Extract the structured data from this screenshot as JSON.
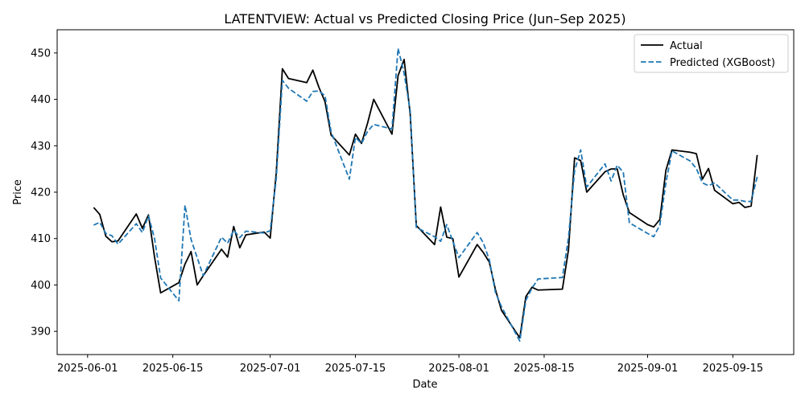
{
  "chart_data": {
    "type": "line",
    "title": "LATENTVIEW: Actual vs Predicted Closing Price (Jun–Sep 2025)",
    "xlabel": "Date",
    "ylabel": "Price",
    "xlim": [
      "2025-05-27",
      "2025-09-25"
    ],
    "ylim": [
      385,
      455
    ],
    "grid": false,
    "legend_position": "top-right",
    "x_ticks": [
      "2025-06-01",
      "2025-06-15",
      "2025-07-01",
      "2025-07-15",
      "2025-08-01",
      "2025-08-15",
      "2025-09-01",
      "2025-09-15"
    ],
    "y_ticks": [
      390,
      400,
      410,
      420,
      430,
      440,
      450
    ],
    "series": [
      {
        "name": "Actual",
        "color": "#000000",
        "dash": "solid",
        "points": [
          [
            "2025-06-02",
            416.7
          ],
          [
            "2025-06-03",
            415.2
          ],
          [
            "2025-06-04",
            410.5
          ],
          [
            "2025-06-05",
            409.3
          ],
          [
            "2025-06-06",
            409.5
          ],
          [
            "2025-06-09",
            415.3
          ],
          [
            "2025-06-10",
            412.2
          ],
          [
            "2025-06-11",
            415.1
          ],
          [
            "2025-06-12",
            406.0
          ],
          [
            "2025-06-13",
            398.3
          ],
          [
            "2025-06-16",
            400.5
          ],
          [
            "2025-06-17",
            404.5
          ],
          [
            "2025-06-18",
            407.2
          ],
          [
            "2025-06-19",
            400.0
          ],
          [
            "2025-06-20",
            402.0
          ],
          [
            "2025-06-23",
            407.7
          ],
          [
            "2025-06-24",
            406.0
          ],
          [
            "2025-06-25",
            412.6
          ],
          [
            "2025-06-26",
            408.0
          ],
          [
            "2025-06-27",
            410.8
          ],
          [
            "2025-06-30",
            411.4
          ],
          [
            "2025-07-01",
            410.1
          ],
          [
            "2025-07-02",
            424.3
          ],
          [
            "2025-07-03",
            446.6
          ],
          [
            "2025-07-04",
            444.5
          ],
          [
            "2025-07-07",
            443.6
          ],
          [
            "2025-07-08",
            446.3
          ],
          [
            "2025-07-09",
            442.6
          ],
          [
            "2025-07-10",
            439.5
          ],
          [
            "2025-07-11",
            432.3
          ],
          [
            "2025-07-14",
            428.0
          ],
          [
            "2025-07-15",
            432.5
          ],
          [
            "2025-07-16",
            430.5
          ],
          [
            "2025-07-17",
            434.9
          ],
          [
            "2025-07-18",
            440.0
          ],
          [
            "2025-07-21",
            432.5
          ],
          [
            "2025-07-22",
            445.1
          ],
          [
            "2025-07-23",
            448.6
          ],
          [
            "2025-07-24",
            436.7
          ],
          [
            "2025-07-25",
            412.8
          ],
          [
            "2025-07-28",
            408.7
          ],
          [
            "2025-07-29",
            416.8
          ],
          [
            "2025-07-30",
            410.3
          ],
          [
            "2025-07-31",
            410.0
          ],
          [
            "2025-08-01",
            401.7
          ],
          [
            "2025-08-04",
            408.7
          ],
          [
            "2025-08-05",
            407.0
          ],
          [
            "2025-08-06",
            404.9
          ],
          [
            "2025-08-07",
            399.0
          ],
          [
            "2025-08-08",
            394.5
          ],
          [
            "2025-08-11",
            388.6
          ],
          [
            "2025-08-12",
            397.5
          ],
          [
            "2025-08-13",
            399.5
          ],
          [
            "2025-08-14",
            398.9
          ],
          [
            "2025-08-18",
            399.1
          ],
          [
            "2025-08-19",
            407.6
          ],
          [
            "2025-08-20",
            427.4
          ],
          [
            "2025-08-21",
            426.8
          ],
          [
            "2025-08-22",
            420.0
          ],
          [
            "2025-08-25",
            424.4
          ],
          [
            "2025-08-26",
            425.0
          ],
          [
            "2025-08-27",
            425.0
          ],
          [
            "2025-08-28",
            419.4
          ],
          [
            "2025-08-29",
            415.6
          ],
          [
            "2025-09-01",
            413.0
          ],
          [
            "2025-09-02",
            412.5
          ],
          [
            "2025-09-03",
            414.1
          ],
          [
            "2025-09-04",
            424.7
          ],
          [
            "2025-09-05",
            429.1
          ],
          [
            "2025-09-08",
            428.6
          ],
          [
            "2025-09-09",
            428.3
          ],
          [
            "2025-09-10",
            422.8
          ],
          [
            "2025-09-11",
            425.1
          ],
          [
            "2025-09-12",
            420.4
          ],
          [
            "2025-09-15",
            417.5
          ],
          [
            "2025-09-16",
            417.8
          ],
          [
            "2025-09-17",
            416.7
          ],
          [
            "2025-09-18",
            417.0
          ],
          [
            "2025-09-19",
            428.0
          ]
        ]
      },
      {
        "name": "Predicted (XGBoost)",
        "color": "#1f77b4",
        "dash": "dashed",
        "points": [
          [
            "2025-06-02",
            412.9
          ],
          [
            "2025-06-03",
            413.5
          ],
          [
            "2025-06-04",
            411.1
          ],
          [
            "2025-06-05",
            410.6
          ],
          [
            "2025-06-06",
            408.8
          ],
          [
            "2025-06-09",
            413.2
          ],
          [
            "2025-06-10",
            411.3
          ],
          [
            "2025-06-11",
            414.9
          ],
          [
            "2025-06-12",
            410.0
          ],
          [
            "2025-06-13",
            401.5
          ],
          [
            "2025-06-16",
            396.6
          ],
          [
            "2025-06-17",
            417.2
          ],
          [
            "2025-06-18",
            409.8
          ],
          [
            "2025-06-19",
            405.9
          ],
          [
            "2025-06-20",
            402.0
          ],
          [
            "2025-06-23",
            410.3
          ],
          [
            "2025-06-24",
            409.0
          ],
          [
            "2025-06-25",
            411.8
          ],
          [
            "2025-06-26",
            410.2
          ],
          [
            "2025-06-27",
            411.6
          ],
          [
            "2025-06-30",
            411.2
          ],
          [
            "2025-07-01",
            411.7
          ],
          [
            "2025-07-02",
            423.0
          ],
          [
            "2025-07-03",
            444.1
          ],
          [
            "2025-07-04",
            442.4
          ],
          [
            "2025-07-07",
            439.6
          ],
          [
            "2025-07-08",
            441.7
          ],
          [
            "2025-07-09",
            441.8
          ],
          [
            "2025-07-10",
            440.8
          ],
          [
            "2025-07-11",
            433.0
          ],
          [
            "2025-07-14",
            422.8
          ],
          [
            "2025-07-15",
            431.8
          ],
          [
            "2025-07-16",
            430.5
          ],
          [
            "2025-07-17",
            433.1
          ],
          [
            "2025-07-18",
            434.6
          ],
          [
            "2025-07-21",
            433.6
          ],
          [
            "2025-07-22",
            451.0
          ],
          [
            "2025-07-23",
            445.6
          ],
          [
            "2025-07-24",
            437.5
          ],
          [
            "2025-07-25",
            412.4
          ],
          [
            "2025-07-28",
            410.4
          ],
          [
            "2025-07-29",
            409.4
          ],
          [
            "2025-07-30",
            413.0
          ],
          [
            "2025-07-31",
            409.4
          ],
          [
            "2025-08-01",
            405.9
          ],
          [
            "2025-08-04",
            411.3
          ],
          [
            "2025-08-05",
            409.1
          ],
          [
            "2025-08-06",
            405.4
          ],
          [
            "2025-08-07",
            398.4
          ],
          [
            "2025-08-08",
            395.3
          ],
          [
            "2025-08-11",
            387.9
          ],
          [
            "2025-08-12",
            396.7
          ],
          [
            "2025-08-13",
            399.3
          ],
          [
            "2025-08-14",
            401.3
          ],
          [
            "2025-08-18",
            401.6
          ],
          [
            "2025-08-19",
            410.2
          ],
          [
            "2025-08-20",
            424.6
          ],
          [
            "2025-08-21",
            429.1
          ],
          [
            "2025-08-22",
            421.1
          ],
          [
            "2025-08-25",
            426.1
          ],
          [
            "2025-08-26",
            422.4
          ],
          [
            "2025-08-27",
            425.8
          ],
          [
            "2025-08-28",
            424.3
          ],
          [
            "2025-08-29",
            413.4
          ],
          [
            "2025-09-01",
            411.1
          ],
          [
            "2025-09-02",
            410.4
          ],
          [
            "2025-09-03",
            412.9
          ],
          [
            "2025-09-04",
            422.0
          ],
          [
            "2025-09-05",
            428.9
          ],
          [
            "2025-09-08",
            426.7
          ],
          [
            "2025-09-09",
            425.1
          ],
          [
            "2025-09-10",
            422.0
          ],
          [
            "2025-09-11",
            421.4
          ],
          [
            "2025-09-12",
            422.0
          ],
          [
            "2025-09-15",
            418.3
          ],
          [
            "2025-09-16",
            418.3
          ],
          [
            "2025-09-17",
            418.0
          ],
          [
            "2025-09-18",
            418.0
          ],
          [
            "2025-09-19",
            423.3
          ]
        ]
      }
    ]
  }
}
